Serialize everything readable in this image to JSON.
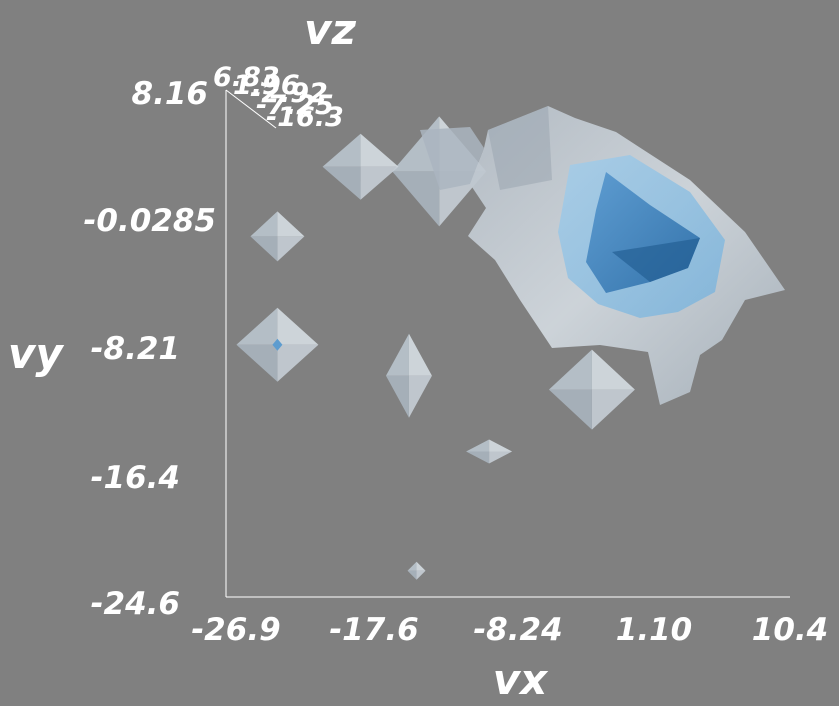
{
  "chart_data": {
    "type": "3d-isosurface",
    "title": "",
    "xlabel": "vx",
    "ylabel": "vy",
    "zlabel": "vz",
    "xlim": [
      -26.9,
      10.4
    ],
    "ylim": [
      -24.6,
      8.16
    ],
    "x_ticks": [
      "-26.9",
      "-17.6",
      "-8.24",
      "1.10",
      "10.4"
    ],
    "y_ticks": [
      "8.16",
      "-0.0285",
      "-8.21",
      "-16.4",
      "-24.6"
    ],
    "z_ticks": [
      "6.83",
      "1.96",
      "-2.92",
      "-7.25",
      "-16.3"
    ],
    "grid": false,
    "background": "#808080",
    "isosurface_colors": {
      "outer": "#c9d2da",
      "middle": "#8fbfe0",
      "inner": "#3f82bf"
    },
    "blobs": [
      {
        "level": "outer",
        "x": -23.5,
        "y": -1.3
      },
      {
        "level": "outer",
        "x": -18.0,
        "y": 3.2
      },
      {
        "level": "outer",
        "x": -12.8,
        "y": 2.9
      },
      {
        "level": "outer",
        "x": -23.5,
        "y": -8.3
      },
      {
        "level": "outer",
        "x": -14.8,
        "y": -10.3
      },
      {
        "level": "outer",
        "x": -9.5,
        "y": -15.2
      },
      {
        "level": "outer",
        "x": -14.3,
        "y": -22.9
      },
      {
        "level": "outer",
        "x": -2.7,
        "y": -11.2
      },
      {
        "level": "outer",
        "x": -0.2,
        "y": 0.3
      },
      {
        "level": "middle",
        "x": -0.9,
        "y": -0.7
      },
      {
        "level": "inner",
        "x": -1.6,
        "y": -1.2
      }
    ]
  }
}
